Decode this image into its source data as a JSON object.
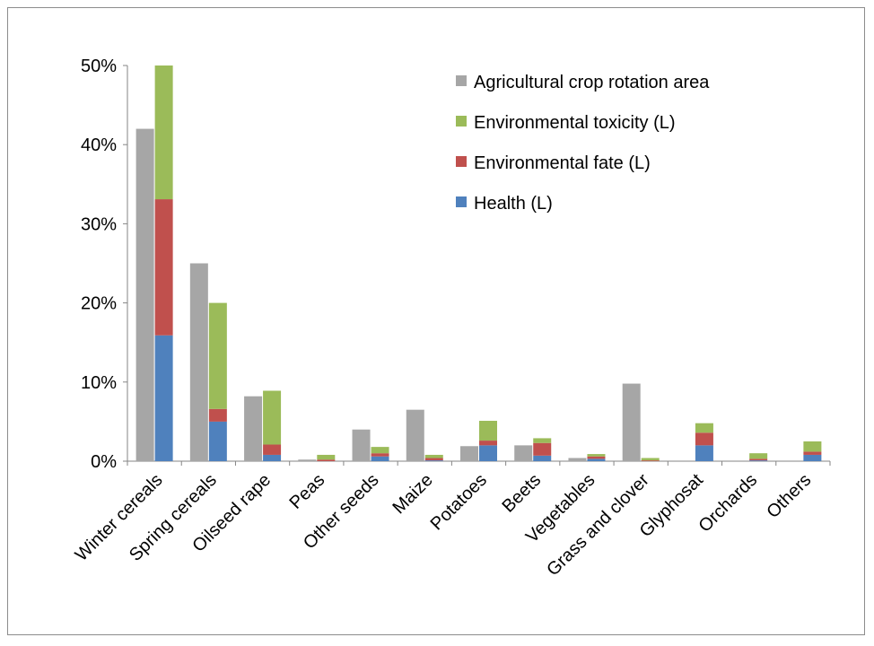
{
  "chart_data": {
    "type": "bar",
    "subtype": "grouped-stacked",
    "title": "",
    "xlabel": "",
    "ylabel": "",
    "ylim": [
      0,
      50
    ],
    "y_ticks": [
      "0%",
      "10%",
      "20%",
      "30%",
      "40%",
      "50%"
    ],
    "grid": false,
    "legend_position": "top-right",
    "categories": [
      "Winter cereals",
      "Spring cereals",
      "Oilseed rape",
      "Peas",
      "Other seeds",
      "Maize",
      "Potatoes",
      "Beets",
      "Vegetables",
      "Grass and clover",
      "Glyphosat",
      "Orchards",
      "Others"
    ],
    "series": [
      {
        "name": "Agricultural crop rotation  area",
        "color": "#a6a6a6",
        "values": [
          42,
          25,
          8.2,
          0.2,
          4.0,
          6.5,
          1.9,
          2.0,
          0.4,
          9.8,
          0,
          0,
          0
        ]
      },
      {
        "name": "Health (L)",
        "color": "#4f81bd",
        "stack": "L",
        "values": [
          15.9,
          5.0,
          0.8,
          0.0,
          0.6,
          0.1,
          2.0,
          0.7,
          0.3,
          0.0,
          2.0,
          0.1,
          0.8
        ]
      },
      {
        "name": "Environmental fate (L)",
        "color": "#c0504d",
        "stack": "L",
        "values": [
          17.2,
          1.6,
          1.3,
          0.2,
          0.4,
          0.3,
          0.6,
          1.6,
          0.3,
          0.1,
          1.6,
          0.2,
          0.4
        ]
      },
      {
        "name": "Environmental toxicity (L)",
        "color": "#9bbb59",
        "stack": "L",
        "values": [
          16.9,
          13.4,
          6.8,
          0.6,
          0.8,
          0.4,
          2.5,
          0.6,
          0.3,
          0.3,
          1.2,
          0.7,
          1.3
        ]
      }
    ],
    "legend_order": [
      "Agricultural crop rotation  area",
      "Environmental toxicity (L)",
      "Environmental fate (L)",
      "Health (L)"
    ]
  }
}
